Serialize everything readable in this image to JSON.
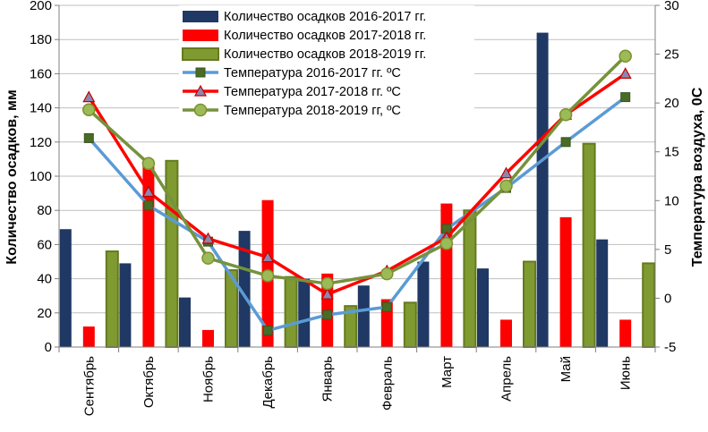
{
  "chart_data": {
    "type": "bar",
    "categories": [
      "Сентябрь",
      "Октябрь",
      "Ноябрь",
      "Декабрь",
      "Январь",
      "Февраль",
      "Март",
      "Апрель",
      "Май",
      "Июнь"
    ],
    "ylabel": "Количество осадков, мм",
    "y2label": "Температура воздуха,  0С",
    "ylim": [
      0,
      200
    ],
    "y2lim": [
      -5,
      30
    ],
    "yticks": [
      0,
      20,
      40,
      60,
      80,
      100,
      120,
      140,
      160,
      180,
      200
    ],
    "y2ticks": [
      -5,
      0,
      5,
      10,
      15,
      20,
      25,
      30
    ],
    "grid": true,
    "legend_position": "top-center",
    "bar_series": [
      {
        "name": "Количество осадков 2016-2017 гг.",
        "color": "#1f3864",
        "values": [
          69,
          49,
          29,
          68,
          40,
          36,
          50,
          46,
          184,
          63
        ]
      },
      {
        "name": "Количество осадков 2017-2018 гг.",
        "color": "#ff0000",
        "values": [
          12,
          109,
          10,
          86,
          43,
          28,
          84,
          16,
          76,
          16
        ]
      },
      {
        "name": "Количество осадков 2018-2019 гг.",
        "color": "#7f9a30",
        "border": "#657a1f",
        "values": [
          56,
          109,
          45,
          41,
          24,
          26,
          80,
          50,
          119,
          49
        ]
      }
    ],
    "line_series": [
      {
        "name": "Температура 2016-2017 гг. ºС",
        "color": "#5b9bd5",
        "marker": "square",
        "marker_color": "#4a6b25",
        "values": [
          16.4,
          9.5,
          5.8,
          -3.3,
          -1.7,
          -0.9,
          7.1,
          11.3,
          16.0,
          20.6
        ]
      },
      {
        "name": "Температура 2017-2018 гг. ºС",
        "color": "#ff0000",
        "marker": "triangle",
        "marker_color": "#8e86ae",
        "values": [
          20.6,
          10.9,
          6.1,
          4.2,
          0.4,
          2.8,
          6.2,
          12.8,
          18.8,
          23.0
        ]
      },
      {
        "name": "Температура 2018-2019 гг,  ºС",
        "color": "#76923c",
        "marker": "circle",
        "marker_color": "#9bbb59",
        "values": [
          19.3,
          13.8,
          4.1,
          2.3,
          1.5,
          2.5,
          5.6,
          11.5,
          18.8,
          24.8
        ]
      }
    ]
  }
}
